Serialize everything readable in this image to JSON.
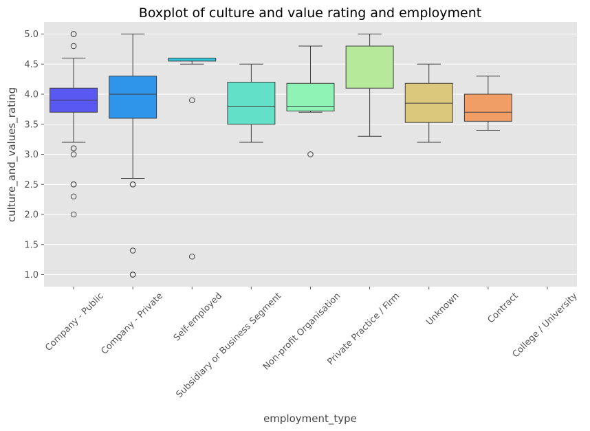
{
  "chart_data": {
    "type": "box",
    "title": "Boxplot of culture and value rating and employment",
    "xlabel": "employment_type",
    "ylabel": "culture_and_values_rating",
    "ylim": [
      0.8,
      5.2
    ],
    "yticks": [
      "1.0",
      "1.5",
      "2.0",
      "2.5",
      "3.0",
      "3.5",
      "4.0",
      "4.5",
      "5.0"
    ],
    "grid": true,
    "categories": [
      "Company - Public",
      "Company - Private",
      "Self-employed",
      "Subsidiary or Business Segment",
      "Non-profit Organisation",
      "Private Practice / Firm",
      "Unknown",
      "Contract",
      "College / University"
    ],
    "boxes": [
      {
        "color": "#5a58f2",
        "whislo": 3.2,
        "q1": 3.7,
        "med": 3.9,
        "q3": 4.1,
        "whishi": 4.6,
        "fliers": [
          5.0,
          5.0,
          4.8,
          3.1,
          3.1,
          3.0,
          2.5,
          2.5,
          2.3,
          2.0
        ]
      },
      {
        "color": "#2e95ea",
        "whislo": 2.6,
        "q1": 3.6,
        "med": 4.0,
        "q3": 4.3,
        "whishi": 5.0,
        "fliers": [
          2.5,
          2.5,
          1.4,
          1.0,
          1.0
        ]
      },
      {
        "color": "#2ec4d6",
        "whislo": 4.5,
        "q1": 4.55,
        "med": 4.6,
        "q3": 4.6,
        "whishi": 4.6,
        "fliers": [
          3.9,
          1.3
        ]
      },
      {
        "color": "#62e0c8",
        "whislo": 3.2,
        "q1": 3.5,
        "med": 3.8,
        "q3": 4.2,
        "whishi": 4.5,
        "fliers": []
      },
      {
        "color": "#8ef3b4",
        "whislo": 3.7,
        "q1": 3.72,
        "med": 3.8,
        "q3": 4.18,
        "whishi": 4.8,
        "fliers": [
          3.0
        ]
      },
      {
        "color": "#b6ea9a",
        "whislo": 3.3,
        "q1": 4.1,
        "med": 4.8,
        "q3": 4.8,
        "whishi": 5.0,
        "fliers": []
      },
      {
        "color": "#dcc87c",
        "whislo": 3.2,
        "q1": 3.53,
        "med": 3.85,
        "q3": 4.18,
        "whishi": 4.5,
        "fliers": []
      },
      {
        "color": "#f09e66",
        "whislo": 3.4,
        "q1": 3.55,
        "med": 3.7,
        "q3": 4.0,
        "whishi": 4.3,
        "fliers": []
      },
      null
    ]
  }
}
